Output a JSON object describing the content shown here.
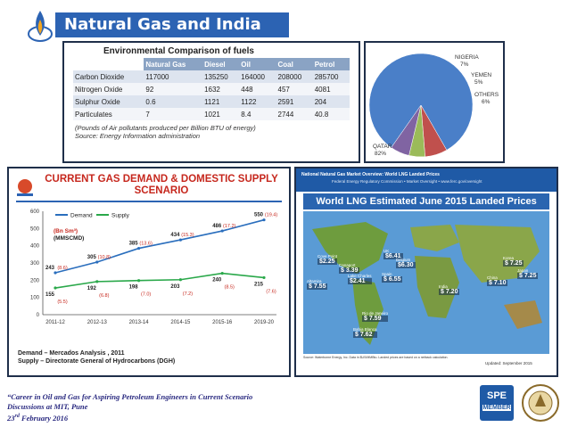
{
  "slide": {
    "title": "Natural Gas and India"
  },
  "fuel_table": {
    "heading": "Environmental Comparison of fuels",
    "columns": [
      "Natural Gas",
      "Diesel",
      "Oil",
      "Coal",
      "Petrol"
    ],
    "rows": [
      {
        "label": "Carbon Dioxide",
        "values": [
          "117000",
          "135250",
          "164000",
          "208000",
          "285700"
        ]
      },
      {
        "label": "Nitrogen Oxide",
        "values": [
          "92",
          "1632",
          "448",
          "457",
          "4081"
        ]
      },
      {
        "label": "Sulphur Oxide",
        "values": [
          "0.6",
          "1121",
          "1122",
          "2591",
          "204"
        ]
      },
      {
        "label": "Particulates",
        "values": [
          "7",
          "1021",
          "8.4",
          "2744",
          "40.8"
        ]
      }
    ],
    "note_line1": "(Pounds of Air pollutants produced per Billion BTU of energy)",
    "note_line2": "Source: Energy Information administration"
  },
  "pie": {
    "labels": {
      "nigeria": "NIGERIA",
      "nigeria_pct": "7%",
      "yemen": "YEMEN",
      "yemen_pct": "5%",
      "others": "OTHERS",
      "others_pct": "6%",
      "qatar": "QATAR",
      "qatar_pct": "82%"
    },
    "colors": {
      "qatar": "#4a7fc8",
      "nigeria": "#c0504d",
      "yemen": "#9bbb59",
      "others": "#8064a2"
    }
  },
  "chart_data": [
    {
      "type": "line",
      "title": "CURRENT GAS DEMAND & DOMESTIC SUPPLY SCENARIO",
      "x": [
        "2011-12",
        "2012-13",
        "2013-14",
        "2014-15",
        "2015-16",
        "2019-20"
      ],
      "series": [
        {
          "name": "Demand",
          "color": "#2a6ebd",
          "values": [
            243,
            305,
            385,
            434,
            486,
            550
          ],
          "growth": [
            "(8.6)",
            "(10.8)",
            "(13.6)",
            "(15.3)",
            "(17.2)",
            "(19.4)"
          ]
        },
        {
          "name": "Supply",
          "color": "#2aa84a",
          "values": [
            155,
            192,
            198,
            203,
            240,
            215
          ],
          "growth": [
            "(5.5)",
            "(6.8)",
            "(7.0)",
            "(7.2)",
            "(8.5)",
            "(7.6)"
          ]
        }
      ],
      "unit_label_line1": "(Bn Sm³)",
      "unit_label_line2": "(MMSCMD)",
      "ylim": [
        0,
        600
      ],
      "yticks": [
        "0",
        "100",
        "200",
        "300",
        "400",
        "500",
        "600"
      ],
      "grid": false,
      "legend": "top-left",
      "source_line1": "Demand – Mercados Analysis , 2011",
      "source_line2": "Supply – Directorate General of Hydrocarbons (DGH)"
    },
    {
      "type": "map",
      "banner": "National Natural Gas Market Overview: World LNG Landed Prices",
      "subbanner": "Federal Energy Regulatory Commission • Market Oversight • www.ferc.gov/oversight",
      "title": "World LNG Estimated June 2015 Landed Prices",
      "price_points": [
        {
          "place": "Cove Point",
          "price": "$2.25"
        },
        {
          "place": "Lake Charles",
          "price": "$2.41"
        },
        {
          "place": "Altamira",
          "price": "$ 7.55"
        },
        {
          "place": "Canaport",
          "price": "$ 3.39"
        },
        {
          "place": "UK",
          "price": "$6.41"
        },
        {
          "place": "Belgium",
          "price": "$6.30"
        },
        {
          "place": "Spain",
          "price": "$ 6.55"
        },
        {
          "place": "India",
          "price": "$ 7.20"
        },
        {
          "place": "Korea",
          "price": "$ 7.25"
        },
        {
          "place": "Japan",
          "price": "$ 7.25"
        },
        {
          "place": "China",
          "price": "$ 7.10"
        },
        {
          "place": "Rio de Janeiro",
          "price": "$ 7.59"
        },
        {
          "place": "Bahia Blanca",
          "price": "$ 7.62"
        }
      ],
      "footnote": "Source: Waterborne Energy, Inc. Data in $US/MMBtu. Landed prices are based on a netback calculation.",
      "updated": "Updated: September 2015"
    }
  ],
  "footer": {
    "line1": "“Career in Oil and Gas for Aspiring Petroleum Engineers in Current Scenario",
    "line2": "Discussions at MIT, Pune",
    "line3_day": "23",
    "line3_sup": "rd",
    "line3_rest": " February 2016",
    "spe_badge": "SPE",
    "spe_member": "MEMBER",
    "mit_logo": "MIT PUNE"
  }
}
